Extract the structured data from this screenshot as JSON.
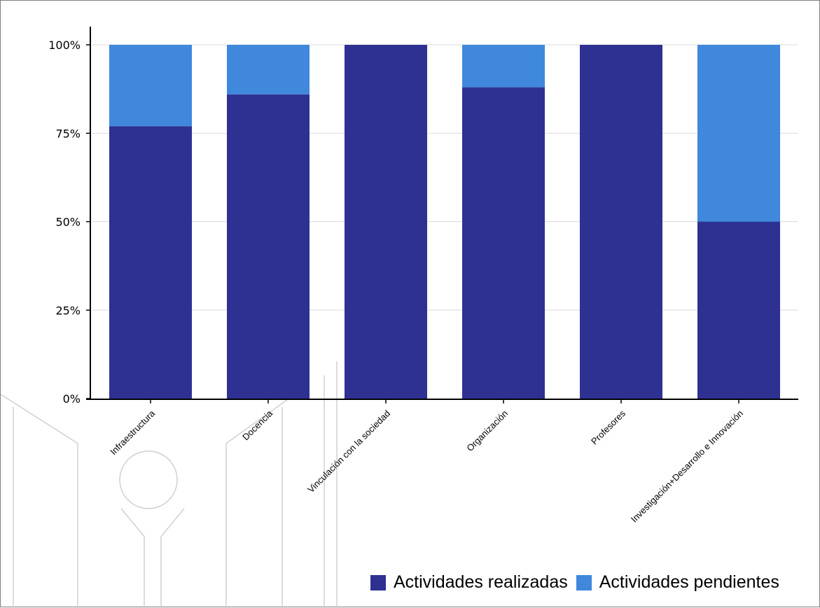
{
  "chart_data": {
    "type": "bar",
    "stacked": true,
    "normalized_percent": true,
    "categories": [
      "Infraestructura",
      "Docencia",
      "Vinculación con la sociedad",
      "Organización",
      "Profesores",
      "Investigación+Desarrollo e Innovación"
    ],
    "series": [
      {
        "name": "Actividades realizadas",
        "color": "#2e3192",
        "values": [
          77,
          86,
          100,
          88,
          100,
          50
        ]
      },
      {
        "name": "Actividades pendientes",
        "color": "#3f88db",
        "values": [
          23,
          14,
          0,
          12,
          0,
          50
        ]
      }
    ],
    "y_ticks": [
      "0%",
      "25%",
      "50%",
      "75%",
      "100%"
    ],
    "ylim": [
      0,
      100
    ],
    "grid": "horizontal",
    "legend_position": "bottom-right"
  },
  "colors": {
    "realizadas": "#2e3192",
    "pendientes": "#3f88db",
    "gridline": "#d9d9d9",
    "axis": "#000000",
    "watermark": "#d0d0d0"
  },
  "watermark": {
    "icon": "university-logo-icon"
  }
}
